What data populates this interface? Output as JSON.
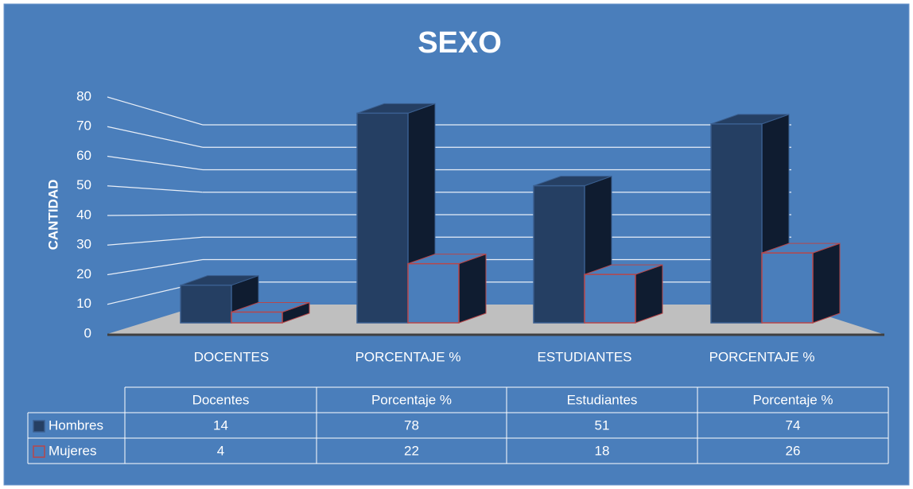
{
  "chart_data": {
    "type": "bar3d",
    "title": "SEXO",
    "ylabel": "CANTIDAD",
    "categories": [
      "DOCENTES",
      "PORCENTAJE %",
      "ESTUDIANTES",
      "PORCENTAJE %"
    ],
    "series": [
      {
        "name": "Hombres",
        "color": "#253f63",
        "edgecolor": "#3a5f90",
        "values": [
          14,
          78,
          51,
          74
        ]
      },
      {
        "name": "Mujeres",
        "color": "#4a7ebb",
        "edgecolor": "#b7474a",
        "values": [
          4,
          22,
          18,
          26
        ]
      }
    ],
    "ylim": [
      0,
      80
    ],
    "yticks": [
      0,
      10,
      20,
      30,
      40,
      50,
      60,
      70,
      80
    ],
    "grid": true,
    "table_headers": [
      "Docentes",
      "Porcentaje %",
      "Estudiantes",
      "Porcentaje %"
    ]
  }
}
